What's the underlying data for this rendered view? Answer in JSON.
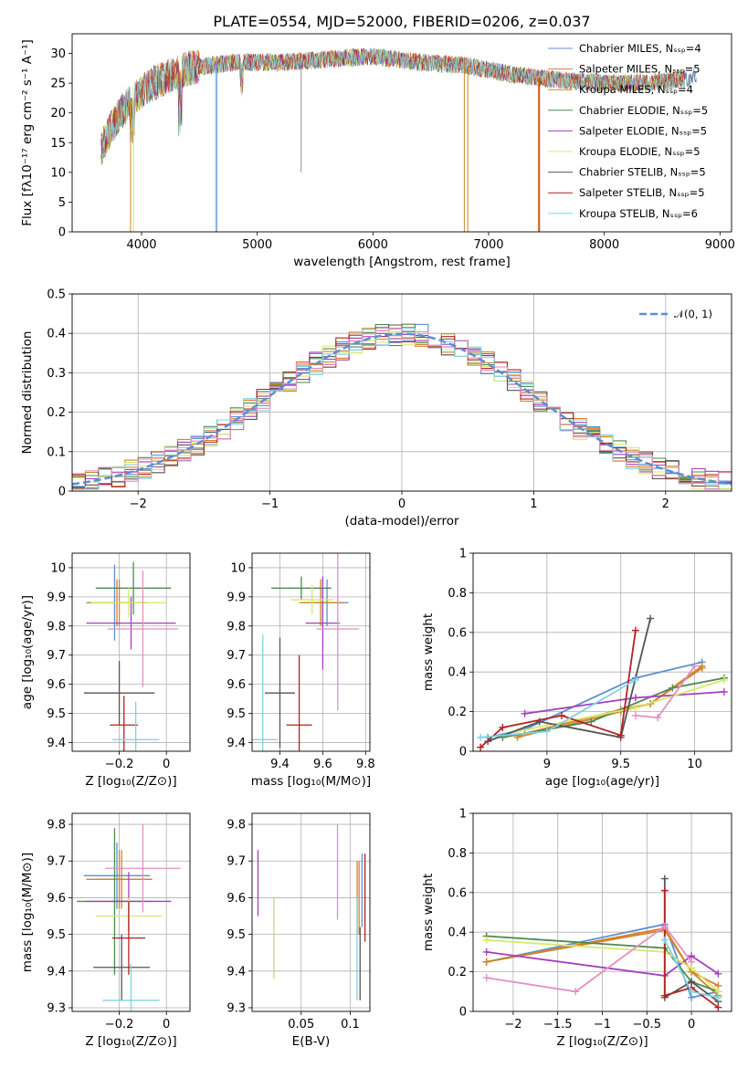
{
  "figure": {
    "title": "PLATE=0554, MJD=52000, FIBERID=0206, z=0.037",
    "colors": [
      "#5b8fd3",
      "#e07b2e",
      "#c98a2b",
      "#4f8a4f",
      "#a63fbf",
      "#d8e86a",
      "#555555",
      "#b22222",
      "#7fd3df"
    ]
  },
  "chart_data": [
    {
      "id": "spectrum",
      "type": "line",
      "title": "PLATE=0554, MJD=52000, FIBERID=0206, z=0.037",
      "xlabel": "wavelength [Angstrom, rest frame]",
      "ylabel": "Flux [fλ10⁻¹⁷ erg cm⁻² s⁻¹ A⁻¹]",
      "xlim": [
        3400,
        9100
      ],
      "ylim": [
        0,
        33.3
      ],
      "xticks": [
        4000,
        5000,
        6000,
        7000,
        8000,
        9000
      ],
      "yticks": [
        0,
        5,
        10,
        15,
        20,
        25,
        30
      ],
      "grid": false,
      "legend": "top-right",
      "legend_entries": [
        "Chabrier MILES, Nₛₛₚ=4",
        "Salpeter MILES, Nₛₛₚ=5",
        "Kroupa MILES, Nₛₛₚ=4",
        "Chabrier ELODIE, Nₛₛₚ=5",
        "Salpeter ELODIE, Nₛₛₚ=5",
        "Kroupa ELODIE, Nₛₛₚ=5",
        "Chabrier STELIB, Nₛₛₚ=5",
        "Salpeter STELIB, Nₛₛₚ=5",
        "Kroupa STELIB, Nₛₛₚ=6"
      ],
      "approx_continuum": {
        "x": [
          3650,
          3750,
          3900,
          4100,
          4400,
          4800,
          5200,
          5600,
          6000,
          6400,
          6800,
          7200,
          7600,
          8000,
          8400,
          8800
        ],
        "y": [
          14,
          18,
          22,
          25,
          27.5,
          28.5,
          28.5,
          29,
          29.5,
          28.5,
          28,
          26.5,
          25.5,
          25,
          25,
          26
        ]
      }
    },
    {
      "id": "residuals",
      "type": "line",
      "xlabel": "(data-model)/error",
      "ylabel": "Normed distribution",
      "xlim": [
        -2.5,
        2.5
      ],
      "ylim": [
        0,
        0.5
      ],
      "xticks": [
        -2,
        -1,
        0,
        1,
        2
      ],
      "yticks": [
        0,
        0.1,
        0.2,
        0.3,
        0.4,
        0.5
      ],
      "grid": true,
      "legend": "top-right",
      "legend_entries": [
        "𝒩(0, 1)"
      ],
      "bin_width": 0.1
    },
    {
      "id": "age-vs-Z",
      "type": "scatter",
      "xlabel": "Z [log₁₀(Z/Z⊙)]",
      "ylabel": "age  [log₁₀(age/yr)]",
      "xlim": [
        -0.4,
        0.1
      ],
      "ylim": [
        9.37,
        10.05
      ],
      "xticks": [
        -0.2,
        0.0
      ],
      "yticks": [
        9.4,
        9.5,
        9.6,
        9.7,
        9.8,
        9.9,
        10.0
      ],
      "grid": true,
      "points": [
        {
          "x": -0.22,
          "y": 9.88,
          "xerr": 0.12,
          "yerr": 0.13
        },
        {
          "x": -0.21,
          "y": 9.88,
          "xerr": 0.12,
          "yerr": 0.08
        },
        {
          "x": -0.2,
          "y": 9.88,
          "xerr": 0.12,
          "yerr": 0.08
        },
        {
          "x": -0.14,
          "y": 9.93,
          "xerr": 0.16,
          "yerr": 0.09
        },
        {
          "x": -0.15,
          "y": 9.81,
          "xerr": 0.19,
          "yerr": 0.09
        },
        {
          "x": -0.16,
          "y": 9.88,
          "xerr": 0.16,
          "yerr": 0.05
        },
        {
          "x": -0.2,
          "y": 9.57,
          "xerr": 0.15,
          "yerr": 0.11
        },
        {
          "x": -0.18,
          "y": 9.46,
          "xerr": 0.06,
          "yerr": 0.1
        },
        {
          "x": -0.13,
          "y": 9.41,
          "xerr": 0.1,
          "yerr": 0.13
        },
        {
          "x": -0.1,
          "y": 9.79,
          "xerr": 0.15,
          "yerr": 0.2
        }
      ]
    },
    {
      "id": "age-vs-mass",
      "type": "scatter",
      "xlabel": "mass [log₁₀(M/M⊙)]",
      "ylabel": "",
      "xlim": [
        9.27,
        9.82
      ],
      "ylim": [
        9.37,
        10.05
      ],
      "xticks": [
        9.4,
        9.6,
        9.8
      ],
      "yticks": [
        9.4,
        9.5,
        9.6,
        9.7,
        9.8,
        9.9,
        10.0
      ],
      "grid": true,
      "points": [
        {
          "x": 9.62,
          "y": 9.88,
          "xerr": 0.1,
          "yerr": 0.08
        },
        {
          "x": 9.6,
          "y": 9.88,
          "xerr": 0.1,
          "yerr": 0.08
        },
        {
          "x": 9.59,
          "y": 9.88,
          "xerr": 0.1,
          "yerr": 0.08
        },
        {
          "x": 9.5,
          "y": 9.93,
          "xerr": 0.14,
          "yerr": 0.04
        },
        {
          "x": 9.6,
          "y": 9.81,
          "xerr": 0.08,
          "yerr": 0.16
        },
        {
          "x": 9.55,
          "y": 9.89,
          "xerr": 0.1,
          "yerr": 0.05
        },
        {
          "x": 9.4,
          "y": 9.57,
          "xerr": 0.07,
          "yerr": 0.19
        },
        {
          "x": 9.49,
          "y": 9.46,
          "xerr": 0.06,
          "yerr": 0.24
        },
        {
          "x": 9.32,
          "y": 9.41,
          "xerr": 0.07,
          "yerr": 0.36
        },
        {
          "x": 9.67,
          "y": 9.79,
          "xerr": 0.1,
          "yerr": 0.28
        }
      ]
    },
    {
      "id": "weight-vs-age",
      "type": "line",
      "xlabel": "age  [log₁₀(age/yr)]",
      "ylabel": "mass weight",
      "xlim": [
        8.5,
        10.25
      ],
      "ylim": [
        0,
        1
      ],
      "xticks": [
        9.0,
        9.5,
        10.0
      ],
      "yticks": [
        0,
        0.2,
        0.4,
        0.6,
        0.8,
        1.0
      ],
      "grid": true,
      "series": [
        {
          "x": [
            8.6,
            8.85,
            9.6,
            10.05
          ],
          "y": [
            0.07,
            0.11,
            0.37,
            0.45
          ]
        },
        {
          "x": [
            8.8,
            9.5,
            9.7,
            10.05
          ],
          "y": [
            0.08,
            0.21,
            0.24,
            0.42
          ]
        },
        {
          "x": [
            8.8,
            9.5,
            9.7,
            10.05
          ],
          "y": [
            0.07,
            0.2,
            0.24,
            0.43
          ]
        },
        {
          "x": [
            8.7,
            9.3,
            9.85,
            10.2
          ],
          "y": [
            0.07,
            0.15,
            0.32,
            0.37
          ]
        },
        {
          "x": [
            8.85,
            9.6,
            10.2
          ],
          "y": [
            0.19,
            0.27,
            0.3
          ]
        },
        {
          "x": [
            8.8,
            9.6,
            10.2
          ],
          "y": [
            0.1,
            0.22,
            0.36
          ]
        },
        {
          "x": [
            8.6,
            8.95,
            9.5,
            9.7
          ],
          "y": [
            0.05,
            0.15,
            0.07,
            0.67
          ]
        },
        {
          "x": [
            8.55,
            8.7,
            9.1,
            9.5,
            9.6
          ],
          "y": [
            0.02,
            0.12,
            0.18,
            0.08,
            0.61
          ]
        },
        {
          "x": [
            8.55,
            9.0,
            9.6
          ],
          "y": [
            0.07,
            0.1,
            0.36
          ]
        },
        {
          "x": [
            9.6,
            9.75,
            10.0
          ],
          "y": [
            0.18,
            0.17,
            0.43
          ]
        }
      ]
    },
    {
      "id": "mass-vs-Z",
      "type": "scatter",
      "xlabel": "Z [log₁₀(Z/Z⊙)]",
      "ylabel": "mass [log₁₀(M/M⊙)]",
      "xlim": [
        -0.4,
        0.1
      ],
      "ylim": [
        9.29,
        9.83
      ],
      "xticks": [
        -0.2,
        0.0
      ],
      "yticks": [
        9.3,
        9.4,
        9.5,
        9.6,
        9.7,
        9.8
      ],
      "grid": true,
      "points": [
        {
          "x": -0.21,
          "y": 9.66,
          "xerr": 0.14,
          "yerr": 0.09
        },
        {
          "x": -0.2,
          "y": 9.65,
          "xerr": 0.14,
          "yerr": 0.08
        },
        {
          "x": -0.19,
          "y": 9.65,
          "xerr": 0.12,
          "yerr": 0.08
        },
        {
          "x": -0.22,
          "y": 9.59,
          "xerr": 0.16,
          "yerr": 0.2
        },
        {
          "x": -0.16,
          "y": 9.59,
          "xerr": 0.18,
          "yerr": 0.08
        },
        {
          "x": -0.16,
          "y": 9.55,
          "xerr": 0.14,
          "yerr": 0.05
        },
        {
          "x": -0.19,
          "y": 9.41,
          "xerr": 0.12,
          "yerr": 0.09
        },
        {
          "x": -0.16,
          "y": 9.49,
          "xerr": 0.07,
          "yerr": 0.1
        },
        {
          "x": -0.15,
          "y": 9.32,
          "xerr": 0.12,
          "yerr": 0.1
        },
        {
          "x": -0.1,
          "y": 9.68,
          "xerr": 0.16,
          "yerr": 0.12
        }
      ]
    },
    {
      "id": "mass-vs-ebv",
      "type": "scatter",
      "xlabel": "E(B-V)",
      "ylabel": "",
      "xlim": [
        0.0,
        0.12
      ],
      "ylim": [
        9.29,
        9.83
      ],
      "xticks": [
        0.05,
        0.1
      ],
      "yticks": [
        9.3,
        9.4,
        9.5,
        9.6,
        9.7,
        9.8
      ],
      "grid": true,
      "points": [
        {
          "x": 0.112,
          "y": 9.62,
          "yerr": 0.1
        },
        {
          "x": 0.109,
          "y": 9.6,
          "yerr": 0.1
        },
        {
          "x": 0.107,
          "y": 9.6,
          "yerr": 0.1
        },
        {
          "x": 0.022,
          "y": 9.49,
          "yerr": 0.11
        },
        {
          "x": 0.006,
          "y": 9.64,
          "yerr": 0.09
        },
        {
          "x": 0.022,
          "y": 9.49,
          "yerr": 0.11
        },
        {
          "x": 0.11,
          "y": 9.42,
          "yerr": 0.1
        },
        {
          "x": 0.115,
          "y": 9.6,
          "yerr": 0.12
        },
        {
          "x": 0.107,
          "y": 9.46,
          "yerr": 0.14
        },
        {
          "x": 0.087,
          "y": 9.67,
          "yerr": 0.13
        }
      ]
    },
    {
      "id": "weight-vs-Z",
      "type": "line",
      "xlabel": "Z [log₁₀(Z/Z⊙)]",
      "ylabel": "mass weight",
      "xlim": [
        -2.45,
        0.45
      ],
      "ylim": [
        0,
        1
      ],
      "xticks": [
        -2.0,
        -1.5,
        -1.0,
        -0.5,
        0.0
      ],
      "yticks": [
        0,
        0.2,
        0.4,
        0.6,
        0.8,
        1.0
      ],
      "grid": true,
      "series": [
        {
          "x": [
            -2.3,
            -0.3,
            0.0,
            0.3
          ],
          "y": [
            0.25,
            0.44,
            0.07,
            0.1
          ]
        },
        {
          "x": [
            -2.3,
            -0.3,
            0.0,
            0.3
          ],
          "y": [
            0.25,
            0.42,
            0.2,
            0.13
          ]
        },
        {
          "x": [
            -2.3,
            -0.3,
            0.0,
            0.3
          ],
          "y": [
            0.25,
            0.41,
            0.2,
            0.08
          ]
        },
        {
          "x": [
            -2.3,
            -0.3,
            0.0,
            0.3
          ],
          "y": [
            0.38,
            0.32,
            0.15,
            0.1
          ]
        },
        {
          "x": [
            -2.3,
            -0.3,
            0.0,
            0.3
          ],
          "y": [
            0.3,
            0.18,
            0.28,
            0.19
          ]
        },
        {
          "x": [
            -2.3,
            -0.3,
            0.0,
            0.3
          ],
          "y": [
            0.36,
            0.3,
            0.22,
            0.1
          ]
        },
        {
          "x": [
            -0.3,
            -0.3,
            0.0,
            0.3
          ],
          "y": [
            0.67,
            0.07,
            0.15,
            0.05
          ]
        },
        {
          "x": [
            -0.3,
            -0.3,
            0.0,
            0.3
          ],
          "y": [
            0.61,
            0.08,
            0.12,
            0.02
          ]
        },
        {
          "x": [
            -0.3,
            0.0,
            0.3
          ],
          "y": [
            0.36,
            0.1,
            0.07
          ]
        },
        {
          "x": [
            -2.3,
            -1.3,
            -0.3,
            0.0
          ],
          "y": [
            0.17,
            0.1,
            0.43,
            0.25
          ]
        }
      ]
    }
  ]
}
